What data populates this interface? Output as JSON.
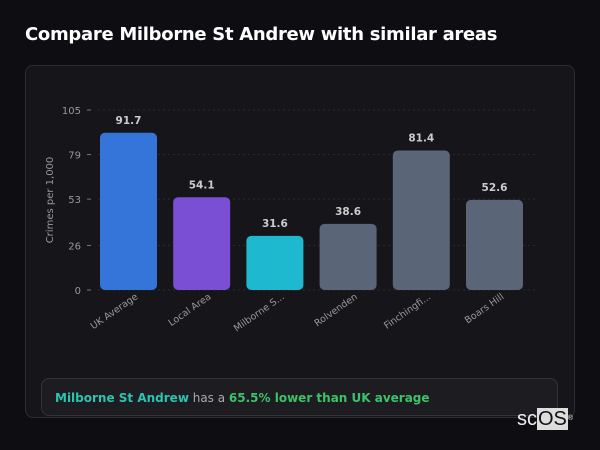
{
  "title": "Compare Milborne St Andrew with similar areas",
  "chart_data": {
    "type": "bar",
    "ylabel": "Crimes per 1,000",
    "xlabel": "",
    "ylim": [
      0,
      105
    ],
    "yticks": [
      0,
      26,
      53,
      79,
      105
    ],
    "grid": true,
    "categories": [
      "UK Average",
      "Local Area",
      "Milborne S...",
      "Rolvenden",
      "Finchingfi...",
      "Boars Hill"
    ],
    "values": [
      91.7,
      54.1,
      31.6,
      38.6,
      81.4,
      52.6
    ],
    "value_labels": [
      "91.7",
      "54.1",
      "31.6",
      "38.6",
      "81.4",
      "52.6"
    ],
    "colors": [
      "#3575d9",
      "#7b4fd4",
      "#1eb8cf",
      "#5a6678",
      "#5a6678",
      "#5a6678"
    ]
  },
  "summary": {
    "area": "Milborne St Andrew",
    "middle": " has a ",
    "comparison": "65.5% lower than UK average"
  },
  "logo": {
    "text_a": "sc",
    "text_b": "OS",
    "mark": "®"
  }
}
